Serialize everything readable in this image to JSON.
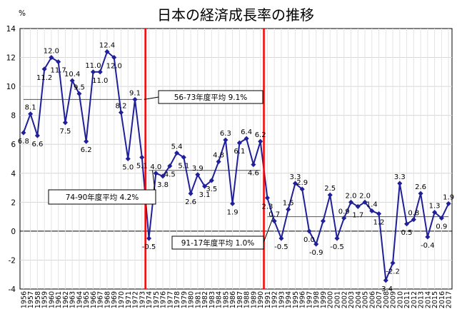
{
  "chart_data": {
    "type": "line",
    "title": "日本の経済成長率の推移",
    "ylabel": "%",
    "ylim": [
      -4,
      14
    ],
    "yticks": [
      -4,
      -2,
      0,
      2,
      4,
      6,
      8,
      10,
      12,
      14
    ],
    "grid": true,
    "series_color": "#1f1f9a",
    "x": [
      "1956",
      "1957",
      "1958",
      "1959",
      "1960",
      "1961",
      "1962",
      "1963",
      "1964",
      "1965",
      "1966",
      "1967",
      "1968",
      "1969",
      "1970",
      "1971",
      "1972",
      "1973",
      "1974",
      "1975",
      "1976",
      "1977",
      "1978",
      "1979",
      "1980",
      "1981",
      "1982",
      "1983",
      "1984",
      "1985",
      "1986",
      "1987",
      "1988",
      "1989",
      "1990",
      "1991",
      "1992",
      "1993",
      "1994",
      "1995",
      "1996",
      "1997",
      "1998",
      "1999",
      "2000",
      "2001",
      "2002",
      "2003",
      "2004",
      "2005",
      "2006",
      "2007",
      "2008",
      "2009",
      "2010",
      "2011",
      "2012",
      "2013",
      "2014",
      "2015",
      "2016",
      "2017"
    ],
    "values": [
      6.8,
      8.1,
      6.6,
      11.2,
      12.0,
      11.7,
      7.5,
      10.4,
      9.5,
      6.2,
      11.0,
      11.0,
      12.4,
      12.0,
      8.2,
      5.0,
      9.1,
      5.1,
      -0.5,
      4.0,
      3.8,
      4.5,
      5.4,
      5.1,
      2.6,
      3.9,
      3.1,
      3.5,
      4.8,
      6.3,
      1.9,
      6.1,
      6.4,
      4.6,
      6.2,
      2.3,
      0.7,
      -0.5,
      1.5,
      3.3,
      2.9,
      0.0,
      -0.9,
      0.7,
      2.5,
      -0.5,
      0.9,
      2.0,
      1.7,
      2.0,
      1.4,
      1.2,
      -3.4,
      -2.2,
      3.3,
      0.5,
      0.8,
      2.6,
      -0.4,
      1.3,
      0.9,
      1.9
    ],
    "labels": [
      "6.8",
      "8.1",
      "6.6",
      "11.2",
      "12.0",
      "11.7",
      "7.5",
      "10.4",
      "9.5",
      "6.2",
      "11.0",
      "11.0",
      "12.4",
      "12.0",
      "8.2",
      "5.0",
      "9.1",
      "5.1",
      "-0.5",
      "4.0",
      "3.8",
      "4.5",
      "5.4",
      "5.1",
      "2.6",
      "3.9",
      "3.1",
      "3.5",
      "4.8",
      "6.3",
      "1.9",
      "6.1",
      "6.4",
      "4.6",
      "6.2",
      "2.3",
      "0.7",
      "-0.5",
      "1.5",
      "3.3",
      "2.9",
      "0.0",
      "-0.9",
      "",
      "2.5",
      "-0.5",
      "0.9",
      "2.0",
      "1.7",
      "2.0",
      "1.4",
      "1.2",
      "-3.4",
      "-2.2",
      "3.3",
      "0.5",
      "0.8",
      "2.6",
      "-0.4",
      "1.3",
      "0.9",
      "1.9"
    ],
    "averages": [
      {
        "label": "56-73年度平均 9.1%",
        "value": 9.1,
        "from": "1956",
        "to": "1973"
      },
      {
        "label": "74-90年度平均 4.2%",
        "value": 4.2,
        "from": "1974",
        "to": "1990"
      },
      {
        "label": "91-17年度平均 1.0%",
        "value": 1.0,
        "from": "1991",
        "to": "2017"
      }
    ],
    "dividers": [
      "1973",
      "1990"
    ],
    "divider_color": "#ff0000"
  }
}
